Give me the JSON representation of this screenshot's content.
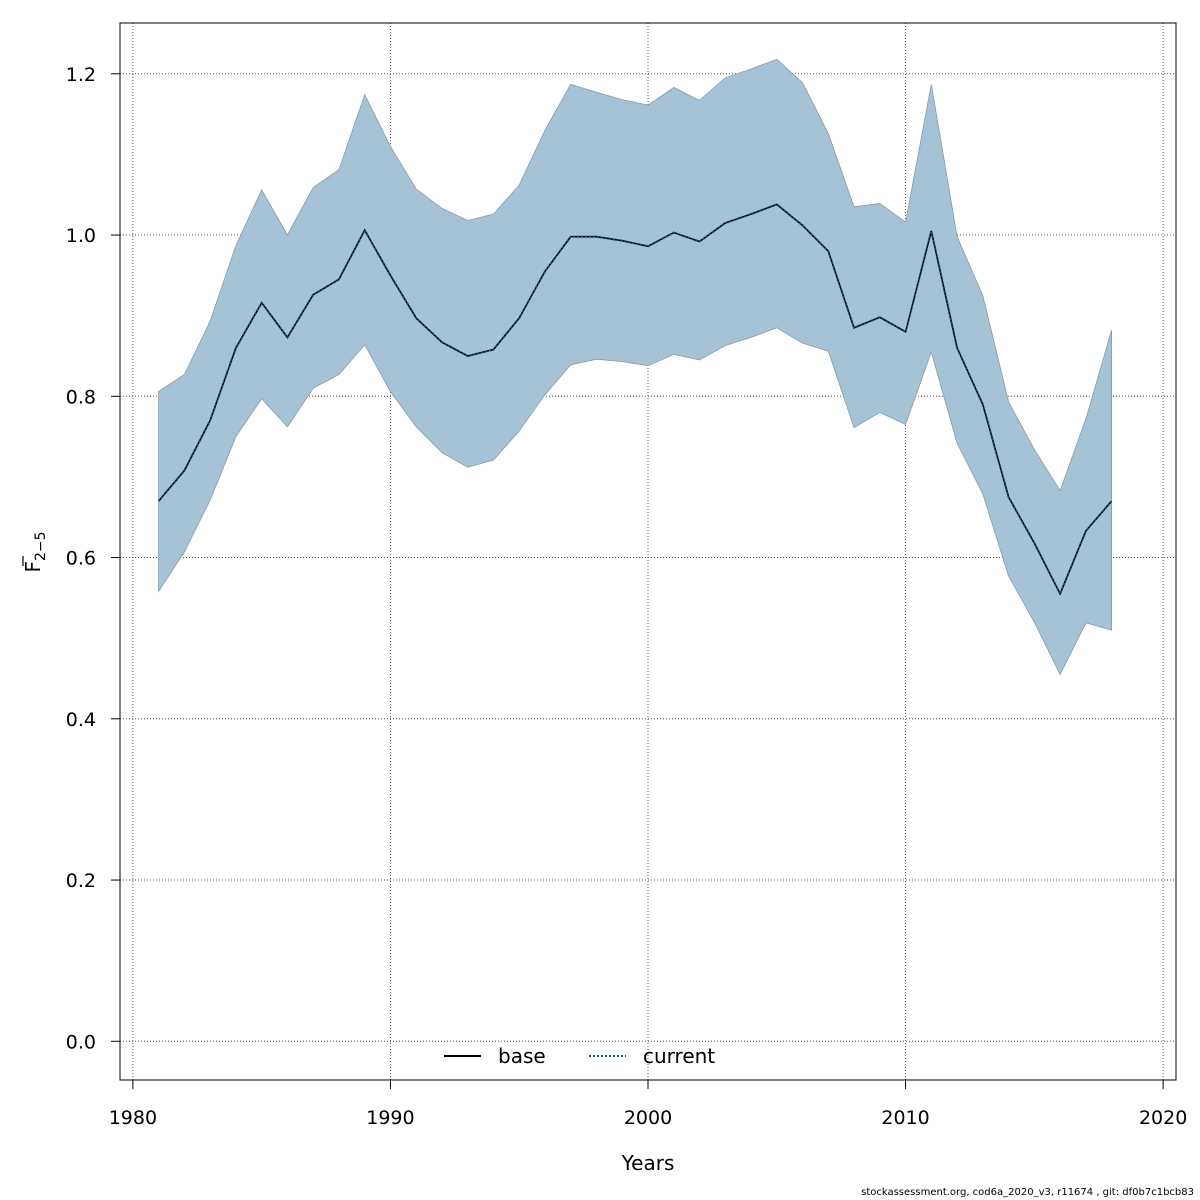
{
  "chart_data": {
    "type": "line",
    "xlabel": "Years",
    "ylabel_main": "F",
    "ylabel_sub": "2−5",
    "xlim": [
      1979.5,
      2020.5
    ],
    "ylim": [
      -0.048,
      1.263
    ],
    "xticks": [
      1980,
      1990,
      2000,
      2010,
      2020
    ],
    "yticks": [
      0.0,
      0.2,
      0.4,
      0.6,
      0.8,
      1.0,
      1.2
    ],
    "ytick_labels": [
      "0.0",
      "0.2",
      "0.4",
      "0.6",
      "0.8",
      "1.0",
      "1.2"
    ],
    "grid": true,
    "legend_position": "bottom",
    "colors": {
      "band": "#a5c3d5",
      "band_edge": "#8a9aa4",
      "current": "#0a4f80",
      "base": "#000000",
      "grid": "#555555"
    },
    "x": [
      1981,
      1982,
      1983,
      1984,
      1985,
      1986,
      1987,
      1988,
      1989,
      1990,
      1991,
      1992,
      1993,
      1994,
      1995,
      1996,
      1997,
      1998,
      1999,
      2000,
      2001,
      2002,
      2003,
      2004,
      2005,
      2006,
      2007,
      2008,
      2009,
      2010,
      2011,
      2012,
      2013,
      2014,
      2015,
      2016,
      2017,
      2018
    ],
    "series": [
      {
        "name": "base",
        "style": "solid",
        "values": [
          0.67,
          0.708,
          0.77,
          0.86,
          0.916,
          0.873,
          0.926,
          0.945,
          1.006,
          0.95,
          0.897,
          0.867,
          0.85,
          0.858,
          0.897,
          0.955,
          0.998,
          0.998,
          0.993,
          0.986,
          1.003,
          0.992,
          1.015,
          1.026,
          1.038,
          1.012,
          0.98,
          0.885,
          0.898,
          0.88,
          1.005,
          0.86,
          0.79,
          0.675,
          0.618,
          0.555,
          0.633,
          0.67
        ]
      },
      {
        "name": "current",
        "style": "dotted",
        "values": [
          0.67,
          0.708,
          0.77,
          0.86,
          0.916,
          0.873,
          0.926,
          0.945,
          1.006,
          0.95,
          0.897,
          0.867,
          0.85,
          0.858,
          0.897,
          0.955,
          0.998,
          0.998,
          0.993,
          0.986,
          1.003,
          0.992,
          1.015,
          1.026,
          1.038,
          1.012,
          0.98,
          0.885,
          0.898,
          0.88,
          1.005,
          0.86,
          0.79,
          0.675,
          0.618,
          0.555,
          0.633,
          0.67
        ]
      }
    ],
    "band": {
      "upper": [
        0.806,
        0.827,
        0.893,
        0.987,
        1.056,
        1.0,
        1.059,
        1.081,
        1.174,
        1.11,
        1.057,
        1.033,
        1.018,
        1.026,
        1.062,
        1.13,
        1.187,
        1.177,
        1.168,
        1.161,
        1.183,
        1.167,
        1.195,
        1.206,
        1.218,
        1.189,
        1.126,
        1.035,
        1.039,
        1.016,
        1.187,
        0.998,
        0.925,
        0.793,
        0.734,
        0.683,
        0.772,
        0.882
      ],
      "lower": [
        0.558,
        0.607,
        0.671,
        0.75,
        0.797,
        0.762,
        0.81,
        0.827,
        0.864,
        0.806,
        0.762,
        0.73,
        0.712,
        0.721,
        0.757,
        0.802,
        0.839,
        0.846,
        0.843,
        0.838,
        0.852,
        0.845,
        0.863,
        0.873,
        0.885,
        0.866,
        0.856,
        0.761,
        0.78,
        0.765,
        0.855,
        0.742,
        0.679,
        0.577,
        0.52,
        0.455,
        0.519,
        0.51
      ]
    }
  },
  "footer": "stockassessment.org, cod6a_2020_v3, r11674 , git: df0b7c1bcb83"
}
